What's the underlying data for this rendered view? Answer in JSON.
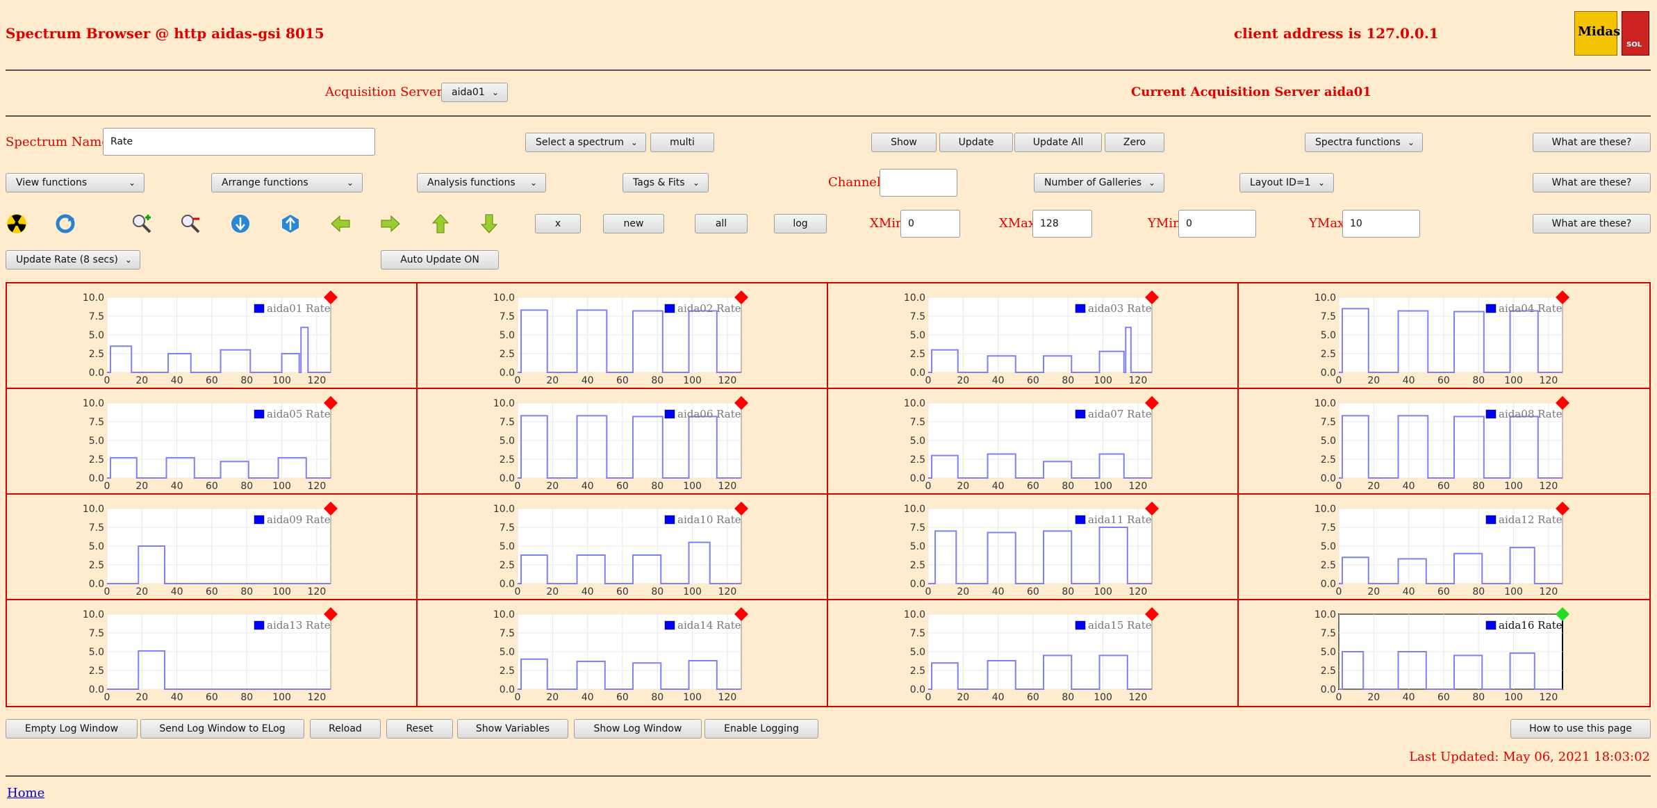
{
  "header": {
    "title": "Spectrum Browser @ http aidas-gsi 8015",
    "client_address": "client address is 127.0.0.1",
    "logo_text": "Midas",
    "logo2_text": "SOL"
  },
  "acquisition": {
    "label": "Acquisition Servers",
    "selected": "aida01",
    "current_label": "Current Acquisition Server aida01"
  },
  "row1": {
    "spectrum_label": "Spectrum Name:",
    "spectrum_value": "Rate",
    "select_spectrum": "Select a spectrum",
    "multi": "multi",
    "show": "Show",
    "update": "Update",
    "update_all": "Update All",
    "zero": "Zero",
    "spectra_functions": "Spectra functions",
    "what1": "What are these?"
  },
  "row2": {
    "view": "View functions",
    "arrange": "Arrange functions",
    "analysis": "Analysis functions",
    "tags": "Tags & Fits",
    "channel_label": "Channel:",
    "channel_value": "",
    "galleries": "Number of Galleries",
    "layout": "Layout ID=1",
    "what2": "What are these?"
  },
  "row3": {
    "x": "x",
    "new": "new",
    "all": "all",
    "log": "log",
    "xmin_label": "XMin",
    "xmin_value": "0",
    "xmax_label": "XMax",
    "xmax_value": "128",
    "ymin_label": "YMin",
    "ymin_value": "0",
    "ymax_label": "YMax",
    "ymax_value": "10",
    "what3": "What are these?"
  },
  "row4": {
    "update_rate": "Update Rate (8 secs)",
    "auto_update": "Auto Update ON"
  },
  "icons": [
    "radiation-icon",
    "refresh-icon",
    "zoom-in-icon",
    "zoom-out-icon",
    "scroll-down-icon",
    "scroll-up-icon",
    "arrow-left-icon",
    "arrow-right-icon",
    "arrow-up-icon",
    "arrow-down-icon"
  ],
  "colors": {
    "status_red": "#ff0000",
    "status_green": "#22dd22",
    "line": "#8080f0",
    "legend_box": "#0000ff"
  },
  "chart_data": {
    "type": "line",
    "xlim": [
      0,
      128
    ],
    "ylim": [
      0,
      10
    ],
    "x_ticks": [
      "0",
      "20",
      "40",
      "60",
      "80",
      "100",
      "120"
    ],
    "y_ticks": [
      "0.0",
      "2.5",
      "5.0",
      "7.5",
      "10.0"
    ],
    "panels": [
      {
        "name": "aida01 Rate",
        "status": "red",
        "segments": [
          [
            2,
            14,
            3.5
          ],
          [
            35,
            48,
            2.5
          ],
          [
            65,
            82,
            3
          ],
          [
            100,
            110,
            2.5
          ],
          [
            111,
            115,
            6
          ]
        ]
      },
      {
        "name": "aida02 Rate",
        "status": "red",
        "segments": [
          [
            2,
            17,
            8.3
          ],
          [
            34,
            51,
            8.3
          ],
          [
            66,
            83,
            8.2
          ],
          [
            98,
            114,
            8.2
          ]
        ]
      },
      {
        "name": "aida03 Rate",
        "status": "red",
        "segments": [
          [
            2,
            17,
            3
          ],
          [
            34,
            50,
            2.2
          ],
          [
            66,
            82,
            2.2
          ],
          [
            98,
            112,
            2.8
          ],
          [
            113,
            116,
            6
          ]
        ]
      },
      {
        "name": "aida04 Rate",
        "status": "red",
        "segments": [
          [
            2,
            17,
            8.5
          ],
          [
            34,
            51,
            8.2
          ],
          [
            66,
            83,
            8.1
          ],
          [
            98,
            114,
            8.2
          ]
        ]
      },
      {
        "name": "aida05 Rate",
        "status": "red",
        "segments": [
          [
            2,
            17,
            2.7
          ],
          [
            34,
            50,
            2.7
          ],
          [
            65,
            81,
            2.2
          ],
          [
            98,
            114,
            2.7
          ]
        ]
      },
      {
        "name": "aida06 Rate",
        "status": "red",
        "segments": [
          [
            2,
            17,
            8.3
          ],
          [
            34,
            51,
            8.3
          ],
          [
            66,
            83,
            8.2
          ],
          [
            98,
            114,
            8.2
          ]
        ]
      },
      {
        "name": "aida07 Rate",
        "status": "red",
        "segments": [
          [
            2,
            17,
            3
          ],
          [
            34,
            50,
            3.2
          ],
          [
            66,
            82,
            2.2
          ],
          [
            98,
            112,
            3.2
          ]
        ]
      },
      {
        "name": "aida08 Rate",
        "status": "red",
        "segments": [
          [
            2,
            17,
            8.3
          ],
          [
            34,
            51,
            8.3
          ],
          [
            66,
            83,
            8.2
          ],
          [
            98,
            114,
            8.2
          ]
        ]
      },
      {
        "name": "aida09 Rate",
        "status": "red",
        "segments": [
          [
            18,
            33,
            5
          ]
        ]
      },
      {
        "name": "aida10 Rate",
        "status": "red",
        "segments": [
          [
            2,
            17,
            3.8
          ],
          [
            34,
            50,
            3.8
          ],
          [
            66,
            82,
            3.8
          ],
          [
            98,
            110,
            5.5
          ]
        ]
      },
      {
        "name": "aida11 Rate",
        "status": "red",
        "segments": [
          [
            4,
            16,
            7
          ],
          [
            34,
            50,
            6.8
          ],
          [
            66,
            82,
            7
          ],
          [
            98,
            114,
            7.5
          ]
        ]
      },
      {
        "name": "aida12 Rate",
        "status": "red",
        "segments": [
          [
            2,
            17,
            3.5
          ],
          [
            34,
            50,
            3.3
          ],
          [
            66,
            82,
            4
          ],
          [
            98,
            112,
            4.8
          ]
        ]
      },
      {
        "name": "aida13 Rate",
        "status": "red",
        "segments": [
          [
            18,
            33,
            5.1
          ]
        ]
      },
      {
        "name": "aida14 Rate",
        "status": "red",
        "segments": [
          [
            2,
            17,
            4
          ],
          [
            34,
            50,
            3.7
          ],
          [
            66,
            82,
            3.5
          ],
          [
            98,
            114,
            3.8
          ]
        ]
      },
      {
        "name": "aida15 Rate",
        "status": "red",
        "segments": [
          [
            2,
            17,
            3.5
          ],
          [
            34,
            50,
            3.8
          ],
          [
            66,
            82,
            4.5
          ],
          [
            98,
            114,
            4.5
          ]
        ]
      },
      {
        "name": "aida16 Rate",
        "status": "green",
        "segments": [
          [
            2,
            14,
            5
          ],
          [
            34,
            50,
            5
          ],
          [
            66,
            82,
            4.5
          ],
          [
            98,
            112,
            4.8
          ]
        ]
      }
    ]
  },
  "footer": {
    "empty_log": "Empty Log Window",
    "send_log": "Send Log Window to ELog",
    "reload": "Reload",
    "reset": "Reset",
    "show_vars": "Show Variables",
    "show_log": "Show Log Window",
    "enable_logging": "Enable Logging",
    "how_to": "How to use this page",
    "last_updated": "Last Updated: May 06, 2021 18:03:02",
    "home": "Home"
  }
}
